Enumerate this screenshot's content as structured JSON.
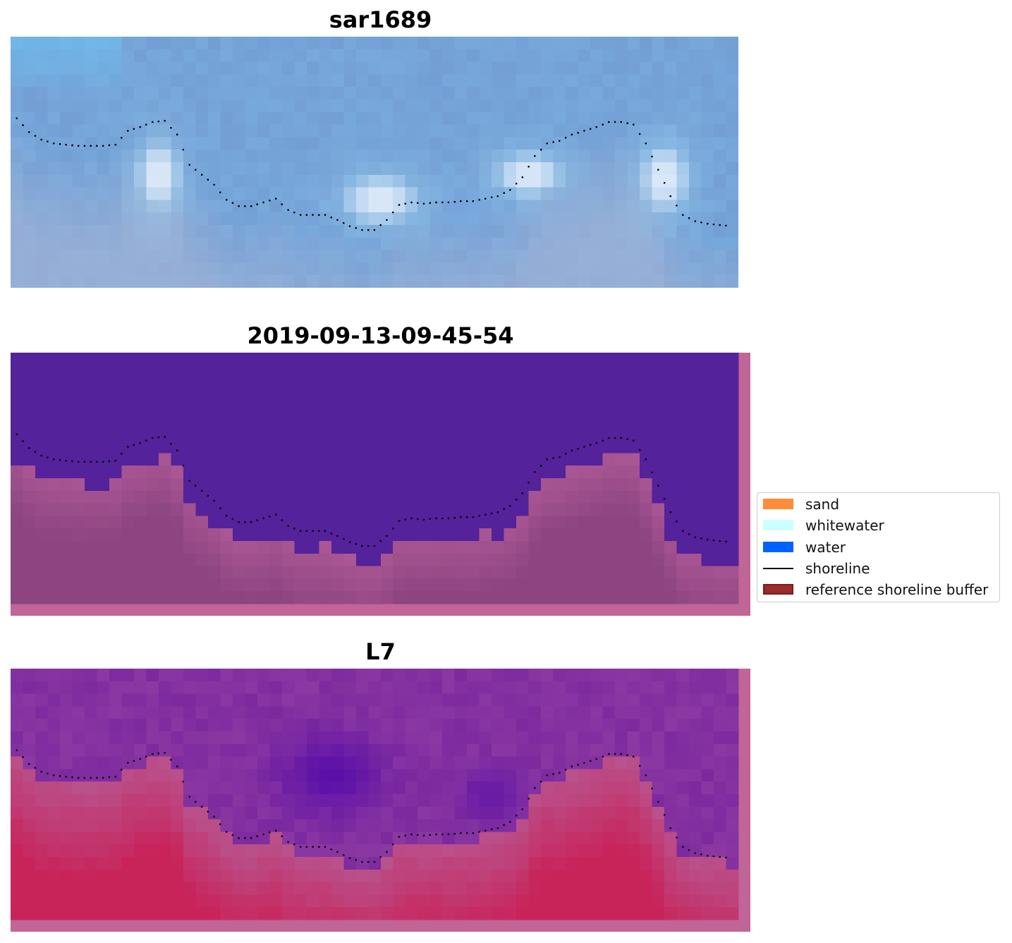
{
  "panels": [
    {
      "title": "sar1689",
      "kind": "rgb"
    },
    {
      "title": "2019-09-13-09-45-54",
      "kind": "classification"
    },
    {
      "title": "L7",
      "kind": "mndwi"
    }
  ],
  "legend": {
    "items": [
      {
        "label": "sand",
        "type": "patch",
        "color": "#ff8c3a"
      },
      {
        "label": "whitewater",
        "type": "patch",
        "color": "#ccffff"
      },
      {
        "label": "water",
        "type": "patch",
        "color": "#0062ff"
      },
      {
        "label": "shoreline",
        "type": "line",
        "color": "#000000"
      },
      {
        "label": "reference shoreline buffer",
        "type": "patch",
        "color": "#9b2c2c",
        "edge": "#7a1a1a"
      }
    ]
  },
  "colors": {
    "buffer_pink": "#c06596",
    "class_water": "#54229a",
    "class_land": "#8c4581",
    "rgb_sky": "#78a9dc",
    "mndwi_top": "#7c2a9e",
    "mndwi_bottom": "#c8245a"
  },
  "chart_data": {
    "type": "image",
    "description_of_series": "shoreline",
    "grid": false,
    "legend_placement": "center-right",
    "shoreline_x": [
      0.5,
      1.5,
      2.5,
      3.5,
      4.5,
      5.5,
      6.5,
      7.5,
      8.5,
      9.5,
      10.5,
      11.5,
      12.5,
      13.5,
      14.5,
      15.5,
      16.5,
      17.5,
      18.5,
      19.5,
      20.5,
      21.5,
      22.5,
      23.5,
      24.5,
      25.5,
      26.5,
      27.5,
      28.5,
      29.5,
      30.5,
      31.5,
      32.5,
      33.5,
      34.5,
      35.5,
      36.5,
      37.5,
      38.5,
      39.5,
      40.5,
      41.5,
      42.5,
      43.5,
      44.5,
      45.5,
      46.5,
      47.5,
      48.5,
      49.5,
      50.5,
      51.5,
      52.5,
      53.5,
      54.5,
      55.5,
      56.5,
      57.5,
      58.5
    ],
    "shoreline_y": [
      6.5,
      7.6,
      8.2,
      8.5,
      8.6,
      8.7,
      8.7,
      8.7,
      8.6,
      7.5,
      7.2,
      6.8,
      6.7,
      7.8,
      10.2,
      11.0,
      11.8,
      13.0,
      13.5,
      13.5,
      13.2,
      12.9,
      13.8,
      14.2,
      14.2,
      14.2,
      14.6,
      15.1,
      15.4,
      15.4,
      14.6,
      13.4,
      13.2,
      13.3,
      13.2,
      13.2,
      13.1,
      13.1,
      12.9,
      12.7,
      12.2,
      11.2,
      9.5,
      8.5,
      8.3,
      7.8,
      7.5,
      7.2,
      6.8,
      6.8,
      7.0,
      8.5,
      10.6,
      12.7,
      14.2,
      14.7,
      14.9,
      15.0,
      15.1
    ]
  }
}
